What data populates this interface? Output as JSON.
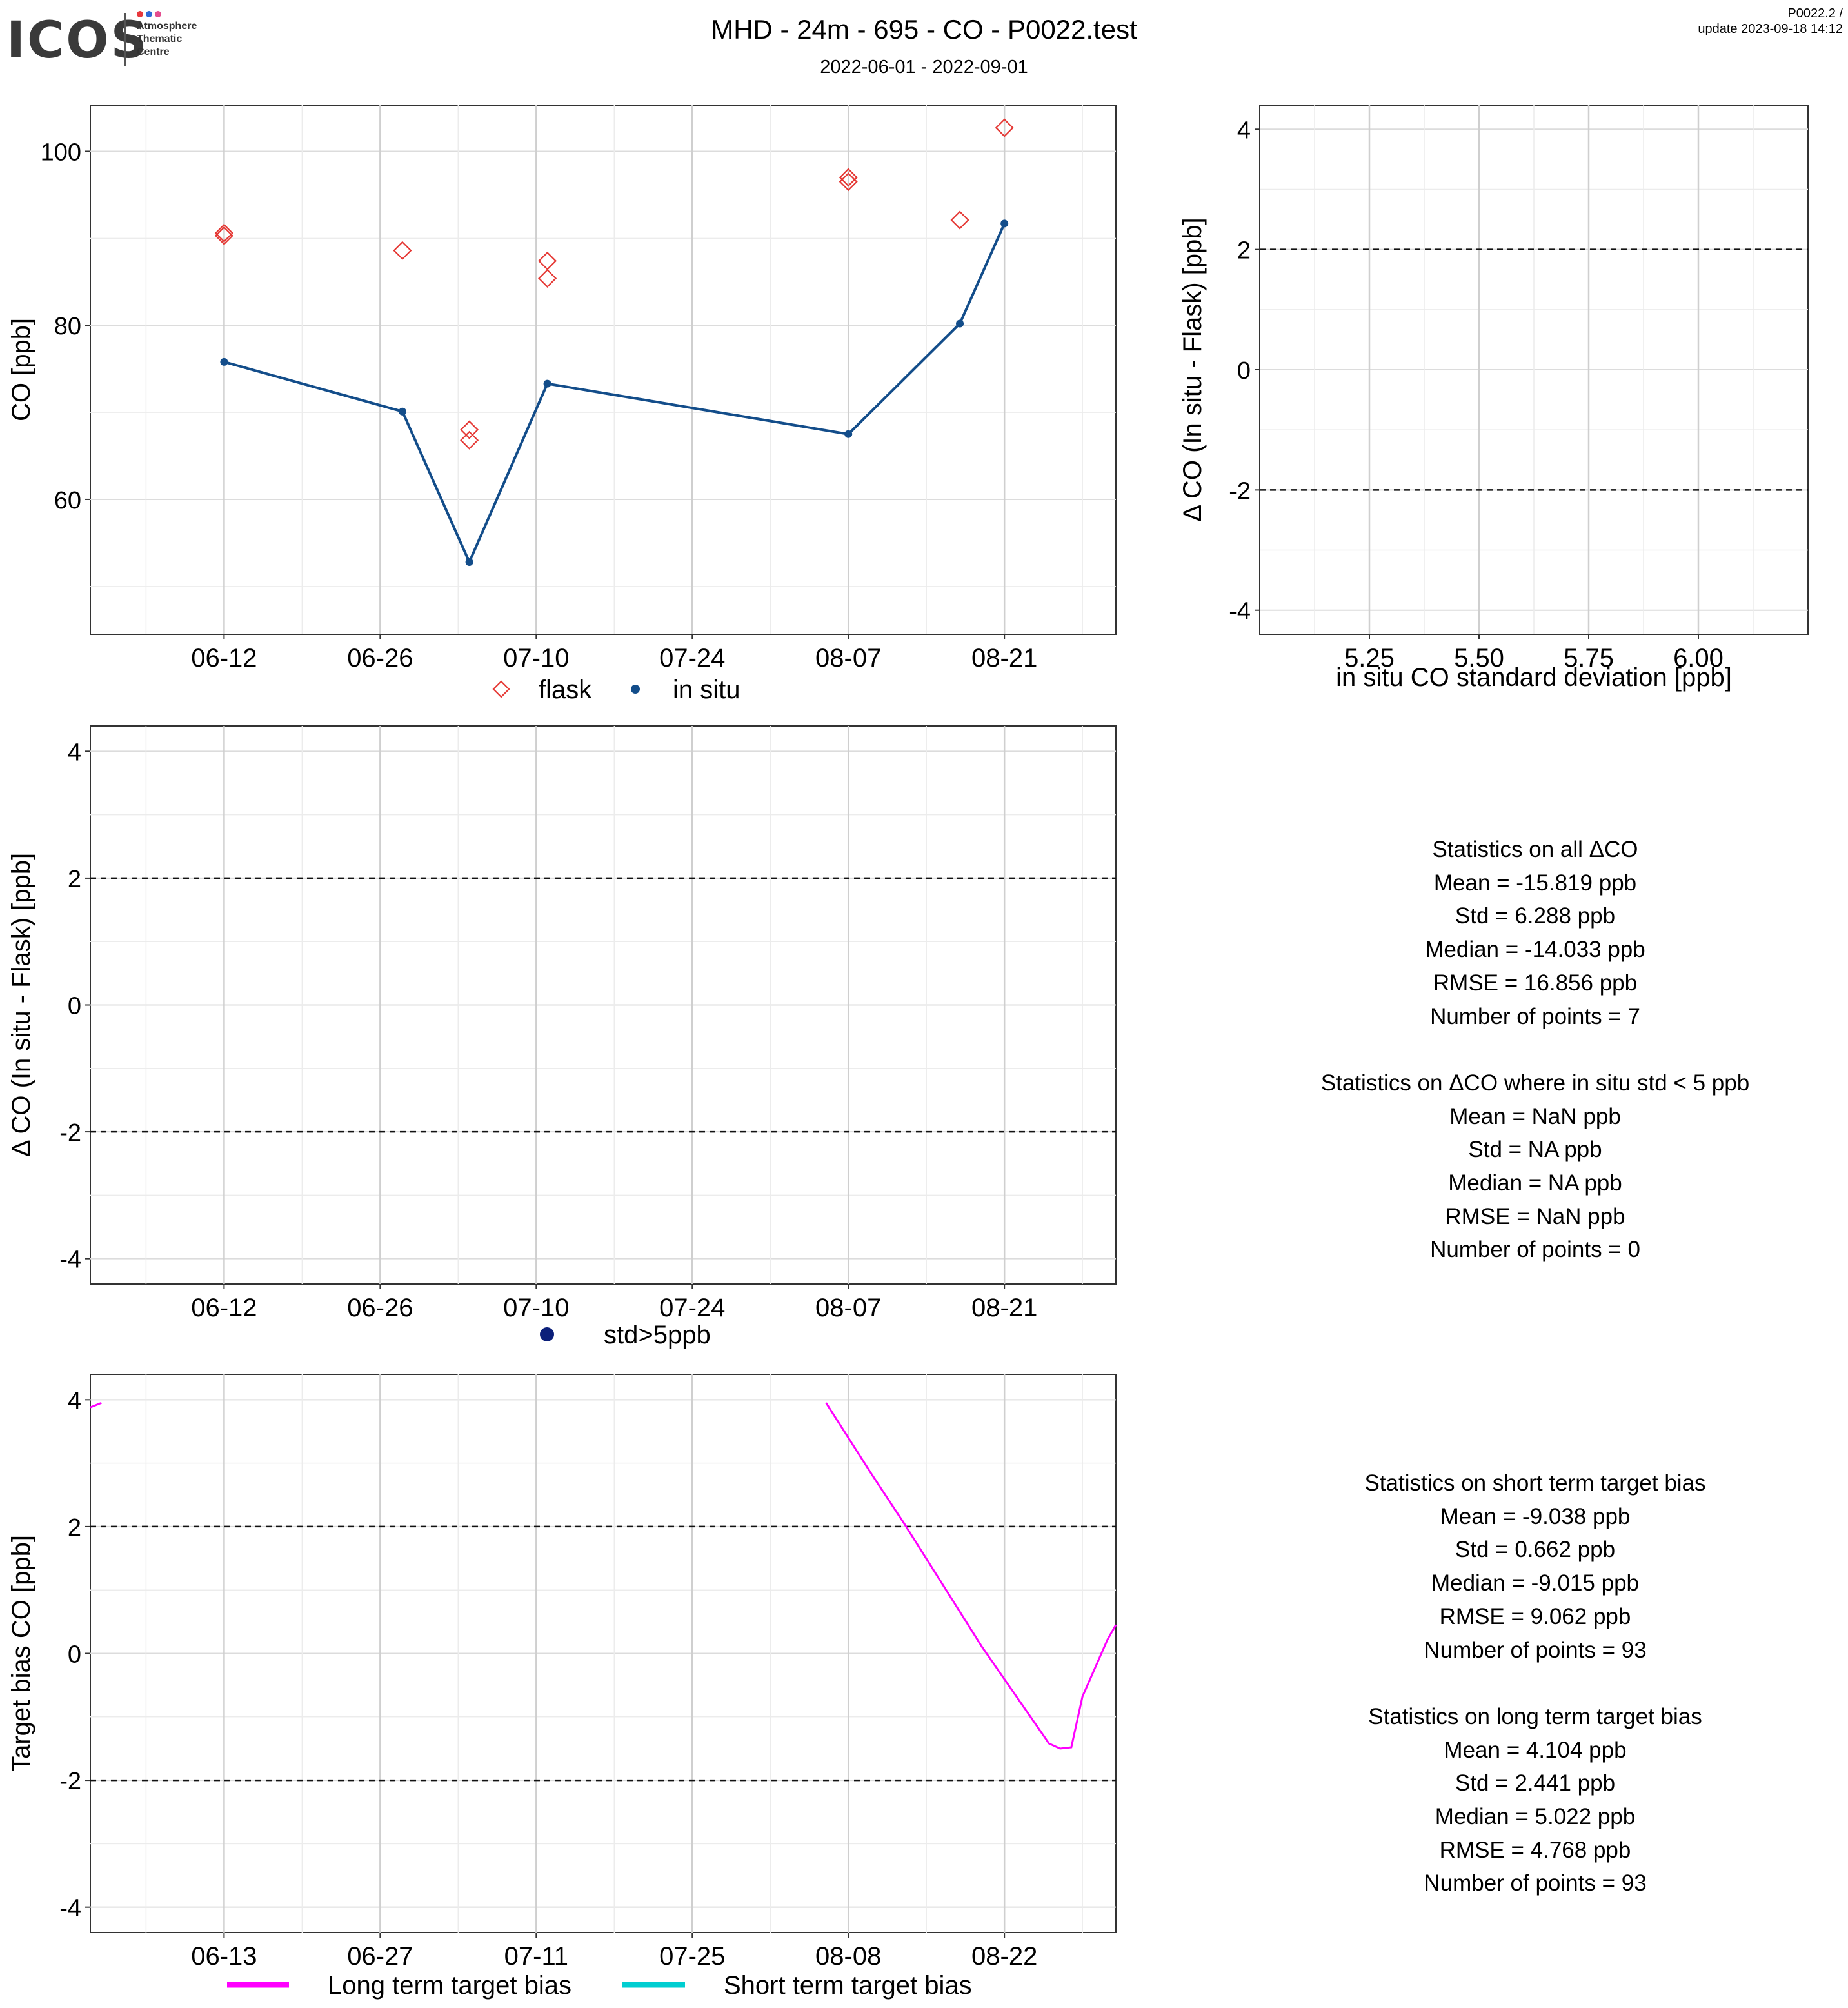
{
  "header": {
    "logo_word": "ICOS",
    "logo_lines": [
      "Atmosphere",
      "Thematic",
      "Centre"
    ],
    "logo_dot_colors": [
      "#e8383d",
      "#2f6bd8",
      "#e44d8f"
    ],
    "title": "MHD - 24m - 695 - CO - P0022.test",
    "subtitle": "2022-06-01 - 2022-09-01",
    "version": "P0022.2 /",
    "update": "update  2023-09-18 14:12"
  },
  "chart_data": [
    {
      "type": "scatter",
      "title": "",
      "xlabel": "",
      "ylabel": "CO [ppb]",
      "x_tick_labels": [
        "06-12",
        "06-26",
        "07-10",
        "07-24",
        "08-07",
        "08-21"
      ],
      "y_tick_labels": [
        "60",
        "80",
        "100"
      ],
      "x_range": [
        "2022-05-31",
        "2022-08-31"
      ],
      "ylim": [
        44.5,
        105.3
      ],
      "grid": true,
      "legend_position": "bottom",
      "series": [
        {
          "name": "flask",
          "marker": "open-diamond",
          "color": "#e53935",
          "points": [
            {
              "x": "2022-06-12",
              "y": 90.6
            },
            {
              "x": "2022-06-12",
              "y": 90.3
            },
            {
              "x": "2022-06-28",
              "y": 88.6
            },
            {
              "x": "2022-07-04",
              "y": 68.0
            },
            {
              "x": "2022-07-04",
              "y": 66.8
            },
            {
              "x": "2022-07-11",
              "y": 87.4
            },
            {
              "x": "2022-07-11",
              "y": 85.4
            },
            {
              "x": "2022-08-07",
              "y": 97.0
            },
            {
              "x": "2022-08-07",
              "y": 96.5
            },
            {
              "x": "2022-08-17",
              "y": 92.1
            },
            {
              "x": "2022-08-21",
              "y": 102.7
            }
          ]
        },
        {
          "name": "in situ",
          "marker": "dot-line",
          "color": "#134d8a",
          "points": [
            {
              "x": "2022-06-12",
              "y": 75.8
            },
            {
              "x": "2022-06-28",
              "y": 70.1
            },
            {
              "x": "2022-07-04",
              "y": 52.8
            },
            {
              "x": "2022-07-11",
              "y": 73.3
            },
            {
              "x": "2022-08-07",
              "y": 67.5
            },
            {
              "x": "2022-08-17",
              "y": 80.2
            },
            {
              "x": "2022-08-21",
              "y": 91.7
            }
          ]
        }
      ]
    },
    {
      "type": "scatter",
      "title": "",
      "xlabel": "in situ CO standard deviation [ppb]",
      "ylabel": "Δ CO (In situ - Flask) [ppb]",
      "x_tick_labels": [
        "5.25",
        "5.50",
        "5.75",
        "6.00"
      ],
      "y_tick_labels": [
        "-4",
        "-2",
        "0",
        "2",
        "4"
      ],
      "xlim": [
        5.0,
        6.25
      ],
      "ylim": [
        -4.4,
        4.4
      ],
      "reference_lines": [
        2,
        -2
      ],
      "grid": true,
      "series": []
    },
    {
      "type": "scatter",
      "title": "",
      "xlabel": "",
      "ylabel": "Δ CO (In situ - Flask) [ppb]",
      "x_tick_labels": [
        "06-12",
        "06-26",
        "07-10",
        "07-24",
        "08-07",
        "08-21"
      ],
      "y_tick_labels": [
        "-4",
        "-2",
        "0",
        "2",
        "4"
      ],
      "x_range": [
        "2022-05-31",
        "2022-08-31"
      ],
      "ylim": [
        -4.4,
        4.4
      ],
      "reference_lines": [
        2,
        -2
      ],
      "grid": true,
      "legend_position": "bottom",
      "series": [
        {
          "name": "std>5ppb",
          "marker": "dot",
          "color": "#0b1f7a",
          "points": []
        }
      ]
    },
    {
      "type": "line",
      "title": "",
      "xlabel": "",
      "ylabel": "Target bias CO [ppb]",
      "x_tick_labels": [
        "06-13",
        "06-27",
        "07-11",
        "07-25",
        "08-08",
        "08-22"
      ],
      "y_tick_labels": [
        "-4",
        "-2",
        "0",
        "2",
        "4"
      ],
      "x_range": [
        "2022-06-01",
        "2022-09-01"
      ],
      "ylim": [
        -4.4,
        4.4
      ],
      "reference_lines": [
        2,
        -2
      ],
      "grid": true,
      "legend_position": "bottom",
      "series": [
        {
          "name": "Long term target bias",
          "color": "#ff00ff",
          "segments": [
            [
              {
                "x": "2022-06-01 00:00",
                "y": 3.88
              },
              {
                "x": "2022-06-02 00:00",
                "y": 3.95
              }
            ],
            [
              {
                "x": "2022-08-06 00:00",
                "y": 3.95
              },
              {
                "x": "2022-08-10 00:00",
                "y": 2.85
              },
              {
                "x": "2022-08-13 00:00",
                "y": 2.05
              },
              {
                "x": "2022-08-20 00:00",
                "y": 0.1
              },
              {
                "x": "2022-08-26 00:00",
                "y": -1.42
              },
              {
                "x": "2022-08-27 00:00",
                "y": -1.5
              },
              {
                "x": "2022-08-28 00:00",
                "y": -1.48
              },
              {
                "x": "2022-08-29 00:00",
                "y": -0.68
              },
              {
                "x": "2022-08-31 06:00",
                "y": 0.22
              },
              {
                "x": "2022-09-01 00:00",
                "y": 0.45
              }
            ]
          ]
        },
        {
          "name": "Short term target bias",
          "color": "#00ced1",
          "segments": []
        }
      ]
    }
  ],
  "stats_block_1": {
    "lines": [
      "Statistics on all ΔCO",
      "Mean =  -15.819 ppb",
      "Std =  6.288 ppb",
      "Median =  -14.033 ppb",
      "RMSE =  16.856 ppb",
      "Number of points =  7",
      "",
      "Statistics on ΔCO where in situ std < 5 ppb",
      "Mean =  NaN ppb",
      "Std =  NA ppb",
      "Median =  NA ppb",
      "RMSE =  NaN ppb",
      "Number of points =  0"
    ]
  },
  "stats_block_2": {
    "lines": [
      "Statistics on short term target bias",
      "Mean =  -9.038 ppb",
      "Std =  0.662 ppb",
      "Median =  -9.015 ppb",
      "RMSE =  9.062 ppb",
      "Number of points =  93",
      "",
      "Statistics on long term target bias",
      "Mean =  4.104 ppb",
      "Std =  2.441 ppb",
      "Median =  5.022 ppb",
      "RMSE =  4.768 ppb",
      "Number of points =  93"
    ]
  }
}
